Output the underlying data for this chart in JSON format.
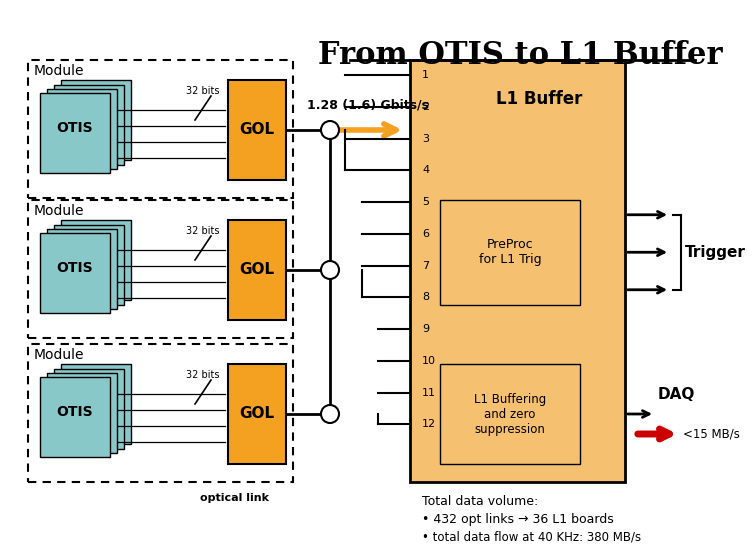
{
  "title": "From OTIS to L1 Buffer",
  "bg_color": "#ffffff",
  "otis_color": "#88c8c8",
  "gol_color": "#f4a020",
  "l1_buffer_color": "#f5c070",
  "arrow_color": "#f4a020",
  "daq_arrow_color": "#cc0000",
  "speed_text": "1.28 (1.6) Gbits/s",
  "optical_link_text": "optical link",
  "l1_buffer_text": "L1 Buffer",
  "preproc_text": "PreProc\nfor L1 Trig",
  "l1_buffering_text": "L1 Buffering\nand zero\nsuppression",
  "trigger_text": "Trigger",
  "daq_text": "DAQ",
  "daq_sub_text": "<15 MB/s",
  "total_data_text": "Total data volume:",
  "bullet1": "• 432 opt links → 36 L1 boards",
  "bullet2": "• total data flow at 40 KHz: 380 MB/s",
  "numbers": [
    "1",
    "2",
    "3",
    "4",
    "5",
    "6",
    "7",
    "8",
    "9",
    "10",
    "11",
    "12"
  ],
  "module_label": "Module",
  "bits_label": "32 bits",
  "gol_label": "GOL",
  "otis_label": "OTIS"
}
